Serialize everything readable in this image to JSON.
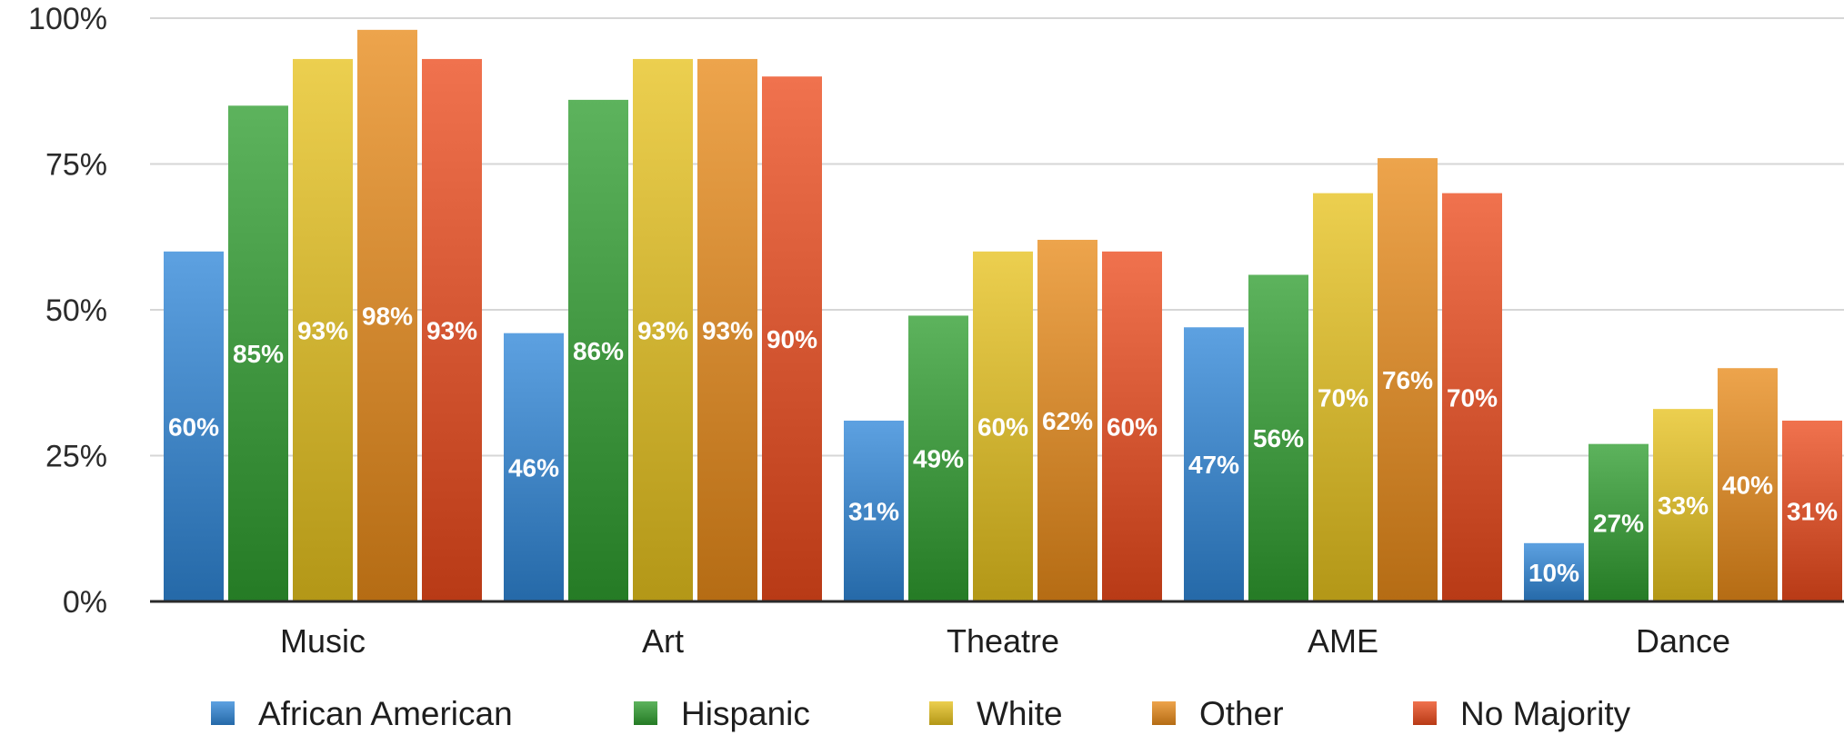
{
  "chart_data": {
    "type": "bar",
    "categories": [
      "Music",
      "Art",
      "Theatre",
      "AME",
      "Dance"
    ],
    "series": [
      {
        "name": "African American",
        "values": [
          60,
          46,
          31,
          47,
          10
        ],
        "color": "#2f86d8"
      },
      {
        "name": "Hispanic",
        "values": [
          85,
          86,
          49,
          56,
          27
        ],
        "color": "#2f9e2f"
      },
      {
        "name": "White",
        "values": [
          93,
          93,
          60,
          70,
          33
        ],
        "color": "#e6c21d"
      },
      {
        "name": "Other",
        "values": [
          98,
          93,
          62,
          76,
          40
        ],
        "color": "#e88a1a"
      },
      {
        "name": "No Majority",
        "values": [
          93,
          90,
          60,
          70,
          31
        ],
        "color": "#ec4a1c"
      }
    ],
    "value_suffix": "%",
    "ylim": [
      0,
      100
    ],
    "yticks": [
      0,
      25,
      50,
      75,
      100
    ],
    "ytick_labels": [
      "0%",
      "25%",
      "50%",
      "75%",
      "100%"
    ],
    "grid": true,
    "legend_position": "bottom"
  }
}
